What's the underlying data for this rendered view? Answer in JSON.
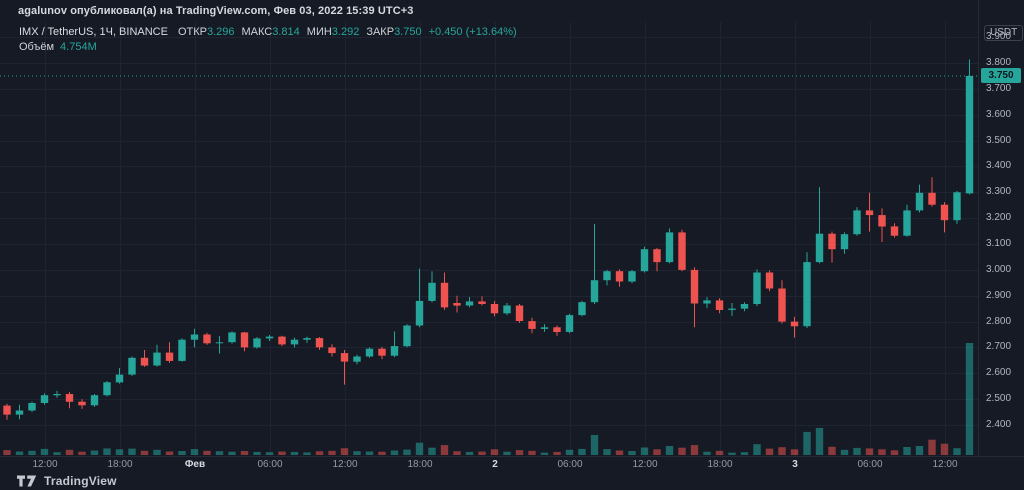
{
  "attribution": {
    "text": "agalunov опубликовал(а) на TradingView.com, Фев 03, 2022 15:39 UTC+3"
  },
  "legend": {
    "symbol": "IMX / TetherUS, 1Ч, BINANCE",
    "items": [
      {
        "label": "ОТКР",
        "value": "3.296"
      },
      {
        "label": "МАКС",
        "value": "3.814"
      },
      {
        "label": "МИН",
        "value": "3.292"
      },
      {
        "label": "ЗАКР",
        "value": "3.750"
      }
    ],
    "change": "+0.450 (+13.64%)",
    "volume_label": "Объём",
    "volume_value": "4.754M"
  },
  "price_axis": {
    "unit": "USDT",
    "labels": [
      "3.900",
      "3.800",
      "3.700",
      "3.600",
      "3.500",
      "3.400",
      "3.300",
      "3.200",
      "3.100",
      "3.000",
      "2.900",
      "2.800",
      "2.700",
      "2.600",
      "2.500",
      "2.400"
    ],
    "current": "3.750"
  },
  "footer": {
    "brand": "TradingView"
  },
  "colors": {
    "background": "#151a25",
    "grid": "#1e2432",
    "up": "#26a69a",
    "down": "#ef5350",
    "volume_up": "rgba(38,166,154,0.55)",
    "volume_down": "rgba(239,83,80,0.55)",
    "axis_text": "#b2b5be",
    "current_price": "#26a69a"
  },
  "chart_data": {
    "type": "candlestick",
    "title": "IMX/TetherUS 1H candlestick chart with volume, BINANCE",
    "price_range_visible": [
      2.28,
      3.96
    ],
    "price_gridlines": [
      2.4,
      2.5,
      2.6,
      2.7,
      2.8,
      2.9,
      3.0,
      3.1,
      3.2,
      3.3,
      3.4,
      3.5,
      3.6,
      3.7,
      3.8,
      3.9
    ],
    "current_price": 3.75,
    "last_candle_ohlc": {
      "open": 3.296,
      "high": 3.814,
      "low": 3.292,
      "close": 3.75
    },
    "change_abs": 0.45,
    "change_pct": 13.64,
    "volume_unit": "millions",
    "columns": [
      "time",
      "open",
      "high",
      "low",
      "close",
      "volume_m"
    ],
    "time_ticks": [
      {
        "index": 3,
        "label": "12:00",
        "major": false
      },
      {
        "index": 9,
        "label": "18:00",
        "major": false
      },
      {
        "index": 15,
        "label": "Фев",
        "major": true
      },
      {
        "index": 21,
        "label": "06:00",
        "major": false
      },
      {
        "index": 27,
        "label": "12:00",
        "major": false
      },
      {
        "index": 33,
        "label": "18:00",
        "major": false
      },
      {
        "index": 39,
        "label": "2",
        "major": true
      },
      {
        "index": 45,
        "label": "06:00",
        "major": false
      },
      {
        "index": 51,
        "label": "12:00",
        "major": false
      },
      {
        "index": 57,
        "label": "18:00",
        "major": false
      },
      {
        "index": 63,
        "label": "3",
        "major": true
      },
      {
        "index": 69,
        "label": "06:00",
        "major": false
      },
      {
        "index": 75,
        "label": "12:00",
        "major": false
      }
    ],
    "candles": [
      [
        "31.01 09:00",
        2.475,
        2.482,
        2.42,
        2.44,
        0.21
      ],
      [
        "31.01 10:00",
        2.44,
        2.478,
        2.422,
        2.456,
        0.15
      ],
      [
        "31.01 11:00",
        2.456,
        2.49,
        2.45,
        2.485,
        0.18
      ],
      [
        "31.01 12:00",
        2.485,
        2.522,
        2.478,
        2.515,
        0.26
      ],
      [
        "31.01 13:00",
        2.515,
        2.532,
        2.505,
        2.52,
        0.12
      ],
      [
        "31.01 14:00",
        2.52,
        2.528,
        2.465,
        2.49,
        0.22
      ],
      [
        "31.01 15:00",
        2.49,
        2.5,
        2.462,
        2.476,
        0.14
      ],
      [
        "31.01 16:00",
        2.476,
        2.52,
        2.47,
        2.515,
        0.19
      ],
      [
        "31.01 17:00",
        2.515,
        2.57,
        2.51,
        2.565,
        0.28
      ],
      [
        "31.01 18:00",
        2.565,
        2.62,
        2.56,
        2.595,
        0.24
      ],
      [
        "31.01 19:00",
        2.595,
        2.665,
        2.59,
        2.66,
        0.27
      ],
      [
        "31.01 20:00",
        2.66,
        2.69,
        2.625,
        2.63,
        0.18
      ],
      [
        "31.01 21:00",
        2.63,
        2.71,
        2.625,
        2.68,
        0.22
      ],
      [
        "31.01 22:00",
        2.68,
        2.72,
        2.64,
        2.648,
        0.15
      ],
      [
        "31.01 23:00",
        2.648,
        2.735,
        2.645,
        2.73,
        0.17
      ],
      [
        "01.02 00:00",
        2.73,
        2.772,
        2.7,
        2.75,
        0.25
      ],
      [
        "01.02 01:00",
        2.75,
        2.756,
        2.71,
        2.716,
        0.18
      ],
      [
        "01.02 02:00",
        2.716,
        2.744,
        2.676,
        2.72,
        0.16
      ],
      [
        "01.02 03:00",
        2.72,
        2.762,
        2.715,
        2.758,
        0.14
      ],
      [
        "01.02 04:00",
        2.758,
        2.76,
        2.685,
        2.7,
        0.17
      ],
      [
        "01.02 05:00",
        2.7,
        2.74,
        2.695,
        2.735,
        0.13
      ],
      [
        "01.02 06:00",
        2.735,
        2.748,
        2.725,
        2.742,
        0.12
      ],
      [
        "01.02 07:00",
        2.742,
        2.745,
        2.705,
        2.712,
        0.15
      ],
      [
        "01.02 08:00",
        2.712,
        2.738,
        2.7,
        2.73,
        0.13
      ],
      [
        "01.02 09:00",
        2.73,
        2.742,
        2.718,
        2.736,
        0.11
      ],
      [
        "01.02 10:00",
        2.736,
        2.74,
        2.69,
        2.7,
        0.16
      ],
      [
        "01.02 11:00",
        2.7,
        2.712,
        2.665,
        2.678,
        0.18
      ],
      [
        "01.02 12:00",
        2.678,
        2.69,
        2.556,
        2.645,
        0.29
      ],
      [
        "01.02 13:00",
        2.645,
        2.672,
        2.635,
        2.665,
        0.16
      ],
      [
        "01.02 14:00",
        2.665,
        2.7,
        2.66,
        2.695,
        0.15
      ],
      [
        "01.02 15:00",
        2.695,
        2.702,
        2.655,
        2.668,
        0.14
      ],
      [
        "01.02 16:00",
        2.668,
        2.762,
        2.662,
        2.705,
        0.19
      ],
      [
        "01.02 17:00",
        2.705,
        2.79,
        2.7,
        2.785,
        0.23
      ],
      [
        "01.02 18:00",
        2.785,
        3.005,
        2.778,
        2.88,
        0.52
      ],
      [
        "01.02 19:00",
        2.88,
        2.995,
        2.875,
        2.95,
        0.31
      ],
      [
        "01.02 20:00",
        2.95,
        2.99,
        2.845,
        2.855,
        0.42
      ],
      [
        "01.02 21:00",
        2.872,
        2.9,
        2.835,
        2.862,
        0.16
      ],
      [
        "01.02 22:00",
        2.862,
        2.895,
        2.855,
        2.878,
        0.13
      ],
      [
        "01.02 23:00",
        2.878,
        2.898,
        2.862,
        2.868,
        0.15
      ],
      [
        "02.02 00:00",
        2.868,
        2.88,
        2.82,
        2.832,
        0.24
      ],
      [
        "02.02 01:00",
        2.832,
        2.872,
        2.825,
        2.862,
        0.14
      ],
      [
        "02.02 02:00",
        2.862,
        2.868,
        2.795,
        2.802,
        0.21
      ],
      [
        "02.02 03:00",
        2.802,
        2.815,
        2.755,
        2.772,
        0.18
      ],
      [
        "02.02 04:00",
        2.772,
        2.79,
        2.76,
        2.778,
        0.1
      ],
      [
        "02.02 05:00",
        2.778,
        2.785,
        2.745,
        2.76,
        0.13
      ],
      [
        "02.02 06:00",
        2.76,
        2.83,
        2.755,
        2.825,
        0.22
      ],
      [
        "02.02 07:00",
        2.825,
        2.88,
        2.82,
        2.875,
        0.26
      ],
      [
        "02.02 08:00",
        2.875,
        3.178,
        2.868,
        2.96,
        0.85
      ],
      [
        "02.02 09:00",
        2.96,
        3.0,
        2.94,
        2.995,
        0.25
      ],
      [
        "02.02 10:00",
        2.995,
        3.002,
        2.935,
        2.955,
        0.19
      ],
      [
        "02.02 11:00",
        2.955,
        3.0,
        2.948,
        2.995,
        0.17
      ],
      [
        "02.02 12:00",
        2.995,
        3.09,
        2.99,
        3.08,
        0.32
      ],
      [
        "02.02 13:00",
        3.08,
        3.085,
        2.995,
        3.03,
        0.24
      ],
      [
        "02.02 14:00",
        3.03,
        3.16,
        3.025,
        3.145,
        0.38
      ],
      [
        "02.02 15:00",
        3.145,
        3.155,
        2.995,
        3.0,
        0.31
      ],
      [
        "02.02 16:00",
        3.0,
        3.01,
        2.778,
        2.87,
        0.42
      ],
      [
        "02.02 17:00",
        2.87,
        2.895,
        2.852,
        2.882,
        0.14
      ],
      [
        "02.02 18:00",
        2.882,
        2.89,
        2.832,
        2.845,
        0.18
      ],
      [
        "02.02 19:00",
        2.845,
        2.872,
        2.822,
        2.85,
        0.1
      ],
      [
        "02.02 20:00",
        2.85,
        2.875,
        2.84,
        2.868,
        0.12
      ],
      [
        "02.02 21:00",
        2.868,
        3.002,
        2.86,
        2.99,
        0.46
      ],
      [
        "02.02 22:00",
        2.99,
        2.998,
        2.918,
        2.928,
        0.27
      ],
      [
        "02.02 23:00",
        2.928,
        2.96,
        2.792,
        2.8,
        0.33
      ],
      [
        "03.02 00:00",
        2.8,
        2.818,
        2.738,
        2.782,
        0.24
      ],
      [
        "03.02 01:00",
        2.782,
        3.068,
        2.775,
        3.03,
        0.98
      ],
      [
        "03.02 02:00",
        3.03,
        3.32,
        3.025,
        3.14,
        1.15
      ],
      [
        "03.02 03:00",
        3.14,
        3.148,
        3.028,
        3.08,
        0.35
      ],
      [
        "03.02 04:00",
        3.08,
        3.145,
        3.062,
        3.138,
        0.22
      ],
      [
        "03.02 05:00",
        3.138,
        3.242,
        3.132,
        3.23,
        0.3
      ],
      [
        "03.02 06:00",
        3.23,
        3.298,
        3.148,
        3.212,
        0.28
      ],
      [
        "03.02 07:00",
        3.212,
        3.238,
        3.108,
        3.168,
        0.24
      ],
      [
        "03.02 08:00",
        3.168,
        3.18,
        3.125,
        3.132,
        0.2
      ],
      [
        "03.02 09:00",
        3.132,
        3.252,
        3.128,
        3.23,
        0.34
      ],
      [
        "03.02 10:00",
        3.23,
        3.33,
        3.222,
        3.298,
        0.38
      ],
      [
        "03.02 11:00",
        3.298,
        3.358,
        3.245,
        3.252,
        0.65
      ],
      [
        "03.02 12:00",
        3.252,
        3.262,
        3.145,
        3.192,
        0.48
      ],
      [
        "03.02 13:00",
        3.192,
        3.305,
        3.178,
        3.3,
        0.29
      ],
      [
        "03.02 14:00",
        3.296,
        3.814,
        3.292,
        3.75,
        4.754
      ]
    ]
  }
}
